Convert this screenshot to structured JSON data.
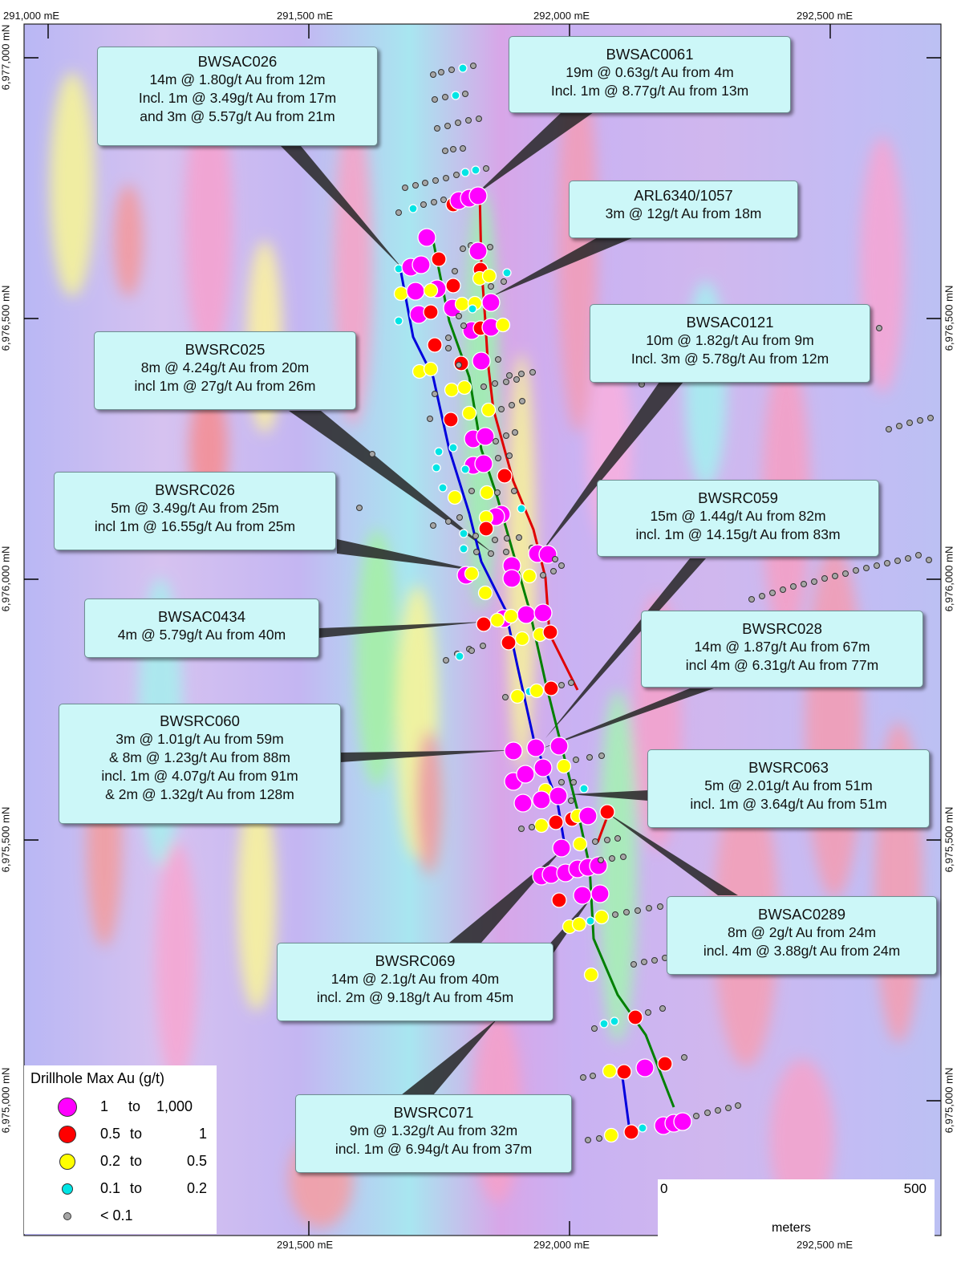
{
  "grid": {
    "top_easting": [
      "291,000 mE",
      "291,500 mE",
      "292,000 mE",
      "292,500 mE"
    ],
    "bottom_easting": [
      "291,500 mE",
      "292,000 mE",
      "292,500 mE"
    ],
    "left_northing": [
      "6,977,000 mN",
      "6,976,500 mN",
      "6,976,000 mN",
      "6,975,500 mN",
      "6,975,000 mN"
    ],
    "right_northing": [
      "6,976,500 mN",
      "6,976,000 mN",
      "6,975,500 mN",
      "6,975,000 mN"
    ]
  },
  "callouts": [
    {
      "hole": "BWSAC026",
      "lines": [
        "14m @ 1.80g/t Au from 12m",
        "Incl. 1m @ 3.49g/t Au from 17m",
        "and 3m @ 5.57g/t Au from 21m"
      ]
    },
    {
      "hole": "BWSAC0061",
      "lines": [
        "19m @ 0.63g/t Au from 4m",
        "Incl. 1m @ 8.77g/t Au from 13m"
      ]
    },
    {
      "hole": "ARL6340/1057",
      "lines": [
        "3m @ 12g/t Au from 18m"
      ]
    },
    {
      "hole": "BWSAC0121",
      "lines": [
        "10m @ 1.82g/t Au from 9m",
        "Incl. 3m @ 5.78g/t Au from 12m"
      ]
    },
    {
      "hole": "BWSRC025",
      "lines": [
        "8m @ 4.24g/t Au from 20m",
        "incl 1m @ 27g/t Au from 26m"
      ]
    },
    {
      "hole": "BWSRC026",
      "lines": [
        "5m @ 3.49g/t Au from 25m",
        "incl 1m @ 16.55g/t Au from 25m"
      ]
    },
    {
      "hole": "BWSRC059",
      "lines": [
        "15m @ 1.44g/t Au from 82m",
        "incl. 1m @ 14.15g/t Au from 83m"
      ]
    },
    {
      "hole": "BWSAC0434",
      "lines": [
        "4m @ 5.79g/t Au from 40m"
      ]
    },
    {
      "hole": "BWSRC028",
      "lines": [
        "14m @ 1.87g/t Au from 67m",
        "incl 4m @ 6.31g/t Au from 77m"
      ]
    },
    {
      "hole": "BWSRC060",
      "lines": [
        "3m @ 1.01g/t Au from 59m",
        "& 8m @ 1.23g/t Au from 88m",
        "incl. 1m @ 4.07g/t Au from 91m",
        "& 2m @ 1.32g/t Au from 128m"
      ]
    },
    {
      "hole": "BWSRC063",
      "lines": [
        "5m @ 2.01g/t Au from 51m",
        "incl. 1m @ 3.64g/t Au from 51m"
      ]
    },
    {
      "hole": "BWSAC0289",
      "lines": [
        "8m @ 2g/t Au from 24m",
        "incl. 4m @ 3.88g/t Au from 24m"
      ]
    },
    {
      "hole": "BWSRC069",
      "lines": [
        "14m @ 2.1g/t Au from 40m",
        "incl. 2m @ 9.18g/t Au from 45m"
      ]
    },
    {
      "hole": "BWSRC071",
      "lines": [
        "9m @ 1.32g/t Au from 32m",
        "incl. 1m @ 6.94g/t Au from 37m"
      ]
    }
  ],
  "legend": {
    "title": "Drillhole Max Au (g/t)",
    "classes": [
      {
        "from": "1",
        "to_word": "to",
        "to": "1,000",
        "color": "#ff00ff"
      },
      {
        "from": "0.5",
        "to_word": "to",
        "to": "1",
        "color": "#ff0000"
      },
      {
        "from": "0.2",
        "to_word": "to",
        "to": "0.5",
        "color": "#ffff00"
      },
      {
        "from": "0.1",
        "to_word": "to",
        "to": "0.2",
        "color": "#00e5e5"
      },
      {
        "from": "< 0.1",
        "to_word": "",
        "to": "",
        "color": "#a6a6a6"
      }
    ]
  },
  "scale_bar": {
    "start": "0",
    "end": "500",
    "unit": "meters"
  },
  "trend_line_colors": {
    "west": "#0000dd",
    "central": "#008000",
    "east": "#e00000"
  }
}
